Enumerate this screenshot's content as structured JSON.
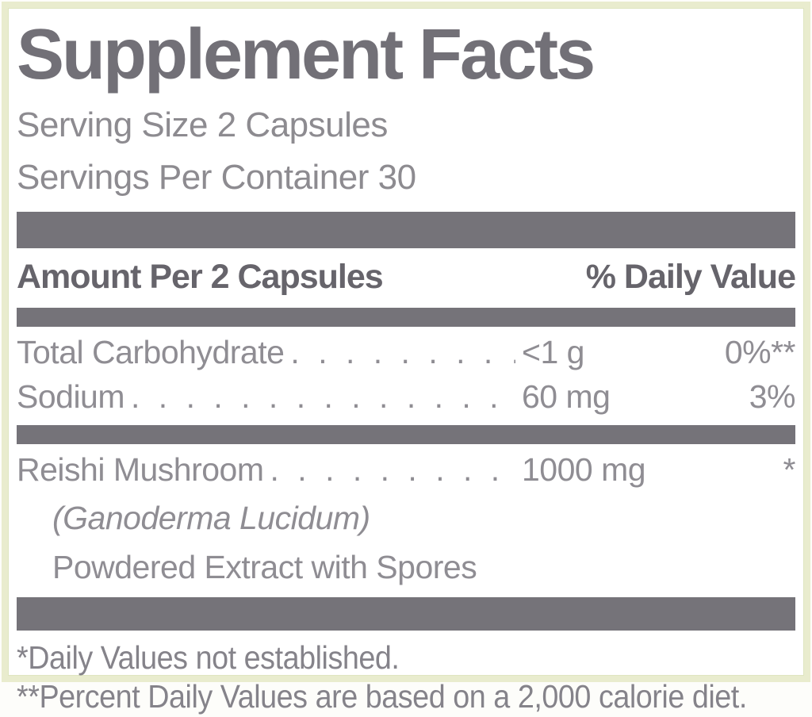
{
  "label": {
    "title": "Supplement Facts",
    "serving_size": "Serving Size 2 Capsules",
    "servings_per_container": "Servings Per Container 30",
    "columns": {
      "amount": "Amount Per 2 Capsules",
      "daily_value": "% Daily Value"
    },
    "rows": [
      {
        "name": "Total Carbohydrate",
        "amount": "<1 g",
        "dv": "0%**"
      },
      {
        "name": "Sodium",
        "amount": "60 mg",
        "dv": "3%"
      },
      {
        "name": "Reishi Mushroom",
        "amount": "1000 mg",
        "dv": "*",
        "sub": [
          {
            "text": "(Ganoderma Lucidum)"
          },
          {
            "text": "Powdered Extract with Spores"
          }
        ]
      }
    ],
    "footnotes": [
      "*Daily Values not established.",
      "**Percent Daily Values are based on a 2,000 calorie diet."
    ],
    "colors": {
      "bar_gray": "#757379",
      "title_gray": "#727077",
      "light_text_gray": "#8f8d93",
      "bold_text_gray": "#66646b",
      "border_green": "#e9ecce"
    }
  }
}
